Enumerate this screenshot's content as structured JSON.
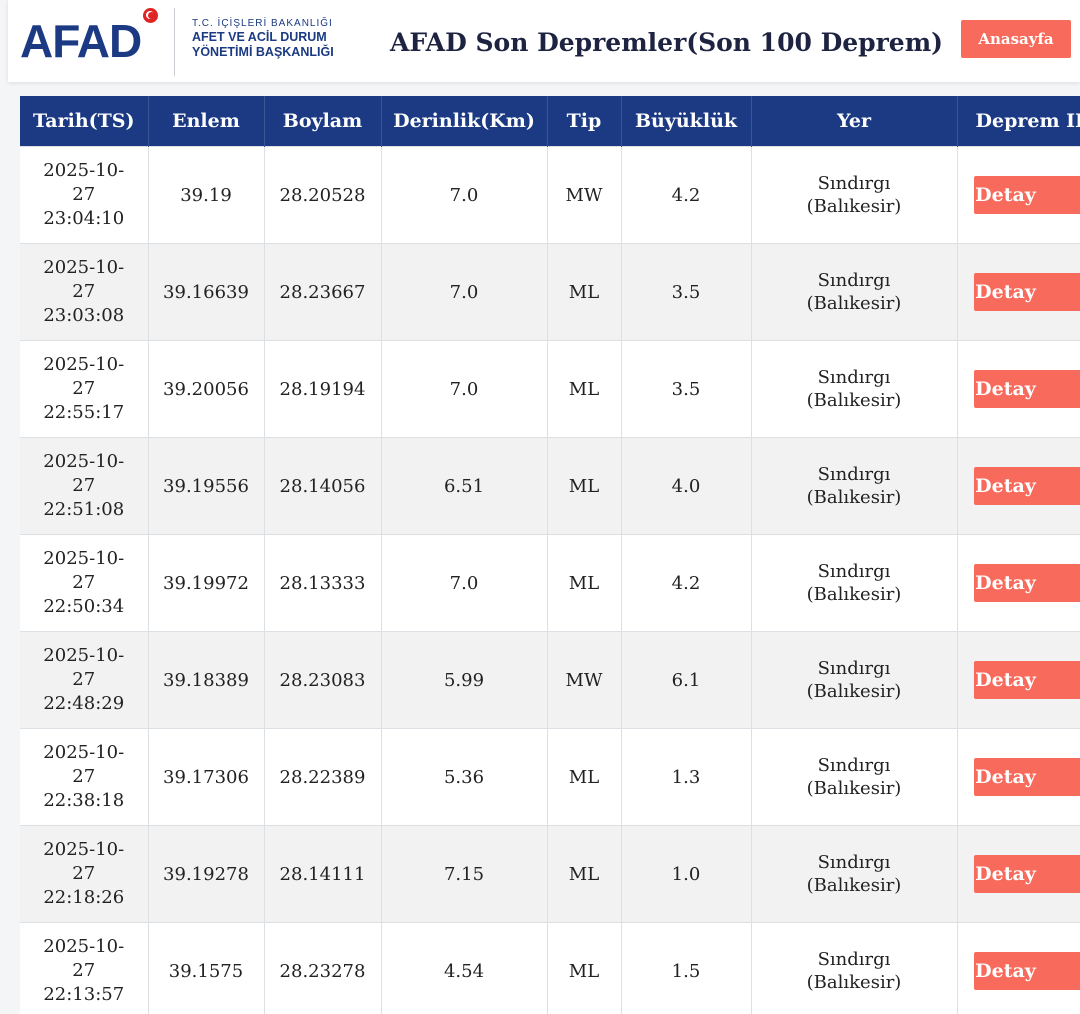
{
  "header": {
    "logo_text": "AFAD",
    "ministry_line1": "T.C. İÇİŞLERİ BAKANLIĞI",
    "ministry_line2": "AFET VE ACİL DURUM",
    "ministry_line3": "YÖNETİMİ BAŞKANLIĞI",
    "title": "AFAD Son Depremler(Son 100 Deprem)",
    "home_button": "Anasayfa"
  },
  "colors": {
    "brand_blue": "#1b3a83",
    "accent_coral": "#f86a5b",
    "flag_red": "#e02424"
  },
  "table": {
    "columns": [
      "Tarih(TS)",
      "Enlem",
      "Boylam",
      "Derinlik(Km)",
      "Tip",
      "Büyüklük",
      "Yer",
      "Deprem ID"
    ],
    "detail_label": "Detay",
    "rows": [
      {
        "date_1": "2025-10-",
        "date_2": "27",
        "time": "23:04:10",
        "lat": "39.19",
        "lon": "28.20528",
        "depth": "7.0",
        "type": "MW",
        "mag": "4.2",
        "place_1": "Sındırgı",
        "place_2": "(Balıkesir)"
      },
      {
        "date_1": "2025-10-",
        "date_2": "27",
        "time": "23:03:08",
        "lat": "39.16639",
        "lon": "28.23667",
        "depth": "7.0",
        "type": "ML",
        "mag": "3.5",
        "place_1": "Sındırgı",
        "place_2": "(Balıkesir)"
      },
      {
        "date_1": "2025-10-",
        "date_2": "27",
        "time": "22:55:17",
        "lat": "39.20056",
        "lon": "28.19194",
        "depth": "7.0",
        "type": "ML",
        "mag": "3.5",
        "place_1": "Sındırgı",
        "place_2": "(Balıkesir)"
      },
      {
        "date_1": "2025-10-",
        "date_2": "27",
        "time": "22:51:08",
        "lat": "39.19556",
        "lon": "28.14056",
        "depth": "6.51",
        "type": "ML",
        "mag": "4.0",
        "place_1": "Sındırgı",
        "place_2": "(Balıkesir)"
      },
      {
        "date_1": "2025-10-",
        "date_2": "27",
        "time": "22:50:34",
        "lat": "39.19972",
        "lon": "28.13333",
        "depth": "7.0",
        "type": "ML",
        "mag": "4.2",
        "place_1": "Sındırgı",
        "place_2": "(Balıkesir)"
      },
      {
        "date_1": "2025-10-",
        "date_2": "27",
        "time": "22:48:29",
        "lat": "39.18389",
        "lon": "28.23083",
        "depth": "5.99",
        "type": "MW",
        "mag": "6.1",
        "place_1": "Sındırgı",
        "place_2": "(Balıkesir)"
      },
      {
        "date_1": "2025-10-",
        "date_2": "27",
        "time": "22:38:18",
        "lat": "39.17306",
        "lon": "28.22389",
        "depth": "5.36",
        "type": "ML",
        "mag": "1.3",
        "place_1": "Sındırgı",
        "place_2": "(Balıkesir)"
      },
      {
        "date_1": "2025-10-",
        "date_2": "27",
        "time": "22:18:26",
        "lat": "39.19278",
        "lon": "28.14111",
        "depth": "7.15",
        "type": "ML",
        "mag": "1.0",
        "place_1": "Sındırgı",
        "place_2": "(Balıkesir)"
      },
      {
        "date_1": "2025-10-",
        "date_2": "27",
        "time": "22:13:57",
        "lat": "39.1575",
        "lon": "28.23278",
        "depth": "4.54",
        "type": "ML",
        "mag": "1.5",
        "place_1": "Sındırgı",
        "place_2": "(Balıkesir)"
      }
    ]
  }
}
